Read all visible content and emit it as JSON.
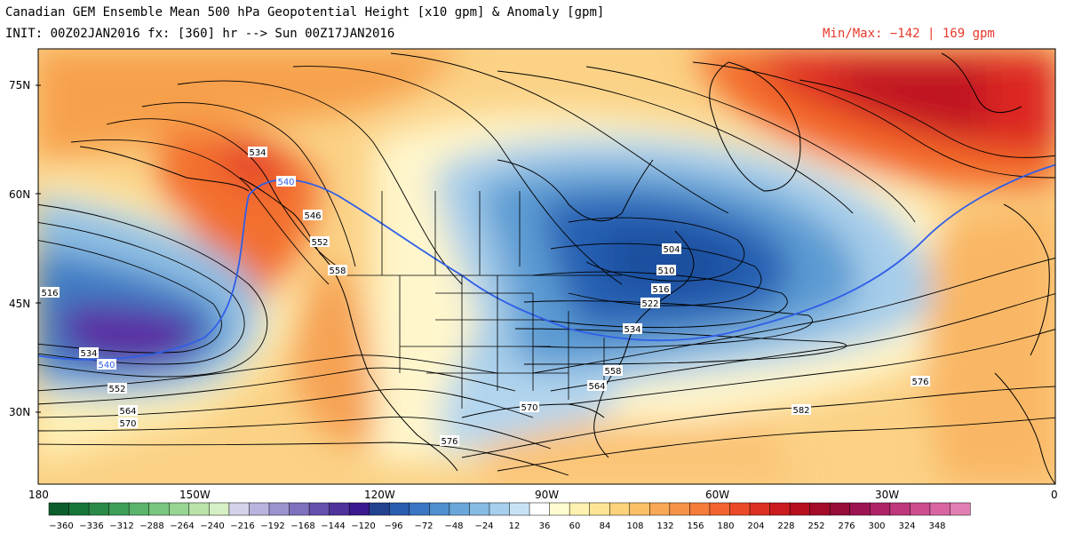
{
  "header": {
    "title": "Canadian GEM Ensemble Mean 500 hPa Geopotential Height [x10 gpm] & Anomaly [gpm]",
    "init": "INIT: 00Z02JAN2016 fx: [360] hr --> Sun 00Z17JAN2016",
    "minmax": "Min/Max:  −142 |   169 gpm"
  },
  "colors": {
    "warm_strong": "#c3141d",
    "warm_mid": "#ef6a2a",
    "warm_light": "#fac46b",
    "warm_pale": "#fdeaa3",
    "cool_pale": "#cfe2f1",
    "cool_light": "#9ec8e6",
    "cool_mid": "#5a9bd1",
    "cool_strong": "#2a62b5",
    "purple": "#6a2ca8",
    "contour_540": "#2f5fe8"
  },
  "map": {
    "lat_labels": [
      "75N",
      "60N",
      "45N",
      "30N"
    ],
    "lon_labels": [
      "180",
      "150W",
      "120W",
      "90W",
      "60W",
      "30W",
      "0"
    ],
    "contour_labels": [
      {
        "text": "534",
        "id": "c534-alaska"
      },
      {
        "text": "540",
        "id": "c540-alaska"
      },
      {
        "text": "546",
        "id": "c546-bc"
      },
      {
        "text": "552",
        "id": "c552-bc"
      },
      {
        "text": "558",
        "id": "c558-bc"
      },
      {
        "text": "516",
        "id": "c516-pacific"
      },
      {
        "text": "534",
        "id": "c534-pacific"
      },
      {
        "text": "540",
        "id": "c540-pacific"
      },
      {
        "text": "552",
        "id": "c552-pacific"
      },
      {
        "text": "564",
        "id": "c564-pacific"
      },
      {
        "text": "570",
        "id": "c570-pacific"
      },
      {
        "text": "504",
        "id": "c504-quebec"
      },
      {
        "text": "510",
        "id": "c510-quebec"
      },
      {
        "text": "516",
        "id": "c516-quebec"
      },
      {
        "text": "522",
        "id": "c522-quebec"
      },
      {
        "text": "534",
        "id": "c534-east"
      },
      {
        "text": "558",
        "id": "c558-east"
      },
      {
        "text": "564",
        "id": "c564-east"
      },
      {
        "text": "570",
        "id": "c570-gulf"
      },
      {
        "text": "576",
        "id": "c576-mexico"
      },
      {
        "text": "576",
        "id": "c576-atlantic"
      },
      {
        "text": "582",
        "id": "c582-atlantic"
      }
    ]
  },
  "colorbar": {
    "ticks": [
      "-360",
      "-336",
      "-312",
      "-288",
      "-264",
      "-240",
      "-216",
      "-192",
      "-168",
      "-144",
      "-120",
      "-96",
      "-72",
      "-48",
      "-24",
      "12",
      "36",
      "60",
      "84",
      "108",
      "132",
      "156",
      "180",
      "204",
      "228",
      "252",
      "276",
      "300",
      "324",
      "348"
    ],
    "colors": [
      "#0b5e2b",
      "#17753a",
      "#2b8a48",
      "#3f9f58",
      "#5ab46b",
      "#78c67f",
      "#98d593",
      "#b9e3a9",
      "#d6efc4",
      "#d4d2ea",
      "#b8b4dd",
      "#9b93cd",
      "#7f71bd",
      "#6650ad",
      "#4f329c",
      "#3a1a8e",
      "#22418f",
      "#2b5cae",
      "#3a76c3",
      "#4f8fd0",
      "#6aa6da",
      "#86bbe3",
      "#a5cfec",
      "#c7e2f4",
      "#ffffff",
      "#fffbd0",
      "#fff2b0",
      "#fde494",
      "#fcd37b",
      "#fbbf66",
      "#f9a955",
      "#f79346",
      "#f57c3a",
      "#f16430",
      "#ea4a28",
      "#dd3022",
      "#cb1b1e",
      "#b6101f",
      "#a30b28",
      "#980c38",
      "#9d1452",
      "#ae2368",
      "#bf377c",
      "#cd4d8f",
      "#d966a2",
      "#e27fb2"
    ]
  }
}
